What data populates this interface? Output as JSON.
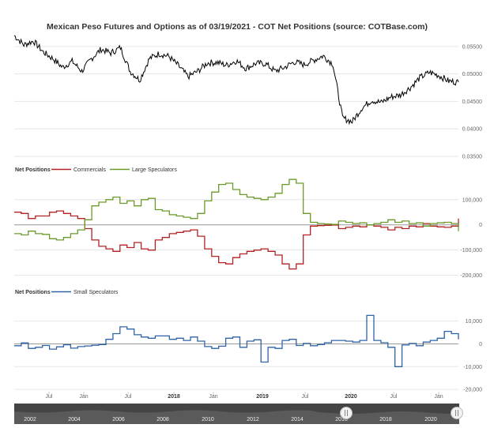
{
  "colors": {
    "price": "#000000",
    "commercials": "#b22222",
    "large_speculators": "#6b9a2b",
    "small_speculators": "#2e63a8",
    "grid": "#e6e6e6",
    "zero_line": "#999999",
    "navigator_bg": "#444444"
  },
  "chart_data": [
    {
      "type": "line",
      "title": "Mexican Peso Futures and Options as of 03/19/2021 - COT Net Positions (source: COTBase.com)",
      "ylim": [
        0.035,
        0.058
      ],
      "yticks": [
        "0.05500",
        "0.05000",
        "0.04500",
        "0.04000",
        "0.03500"
      ],
      "grid": true,
      "series": [
        {
          "x": [
            "2017-05",
            "2017-06",
            "2017-07",
            "2017-08",
            "2017-09",
            "2017-10",
            "2017-11",
            "2017-12",
            "2018-01",
            "2018-02",
            "2018-03",
            "2018-04",
            "2018-05",
            "2018-06",
            "2018-07",
            "2018-08",
            "2018-09",
            "2018-10",
            "2018-11",
            "2018-12",
            "2019-01",
            "2019-02",
            "2019-03",
            "2019-04",
            "2019-05",
            "2019-06",
            "2019-07",
            "2019-08",
            "2019-09",
            "2019-10",
            "2019-11",
            "2019-12",
            "2020-01",
            "2020-02",
            "2020-03",
            "2020-04",
            "2020-05",
            "2020-06",
            "2020-07",
            "2020-08",
            "2020-09",
            "2020-10",
            "2020-11",
            "2020-12",
            "2021-01",
            "2021-02",
            "2021-03"
          ],
          "values": [
            0.057,
            0.0553,
            0.056,
            0.054,
            0.0528,
            0.0512,
            0.0523,
            0.0505,
            0.0528,
            0.0545,
            0.0538,
            0.0548,
            0.0505,
            0.0489,
            0.0528,
            0.0537,
            0.0532,
            0.0515,
            0.0495,
            0.0505,
            0.052,
            0.0521,
            0.0516,
            0.0524,
            0.051,
            0.0519,
            0.0519,
            0.0505,
            0.0512,
            0.0522,
            0.0517,
            0.0525,
            0.0533,
            0.0518,
            0.042,
            0.0413,
            0.0438,
            0.0452,
            0.0448,
            0.0458,
            0.0462,
            0.0475,
            0.0493,
            0.0503,
            0.0497,
            0.0487,
            0.0485
          ]
        }
      ]
    },
    {
      "type": "line",
      "ylim": [
        -220000,
        190000
      ],
      "yticks": [
        100000,
        0,
        -100000,
        -200000
      ],
      "ytick_labels": [
        "100,000",
        "0",
        "-100,000",
        "-200,000"
      ],
      "legend": {
        "title": "Net Positions",
        "position": "top-left"
      },
      "series": [
        {
          "name": "Commercials",
          "values": [
            50000,
            45000,
            25000,
            35000,
            35000,
            50000,
            55000,
            45000,
            35000,
            25000,
            -15000,
            -60000,
            -85000,
            -95000,
            -105000,
            -80000,
            -90000,
            -70000,
            -95000,
            -100000,
            -60000,
            -50000,
            -35000,
            -30000,
            -25000,
            -20000,
            -45000,
            -95000,
            -125000,
            -150000,
            -155000,
            -130000,
            -115000,
            -105000,
            -100000,
            -95000,
            -105000,
            -120000,
            -155000,
            -175000,
            -155000,
            -40000,
            -5000,
            -3000,
            -2000,
            -1000,
            -15000,
            -10000,
            -5000,
            -8000,
            0,
            -5000,
            -10000,
            -20000,
            -10000,
            -15000,
            -5000,
            -8000,
            5000,
            -5000,
            -8000,
            -10000,
            -5000,
            25000
          ]
        },
        {
          "name": "Large Speculators",
          "values": [
            -35000,
            -40000,
            -25000,
            -35000,
            -38000,
            -55000,
            -60000,
            -50000,
            -35000,
            -20000,
            20000,
            75000,
            90000,
            100000,
            110000,
            85000,
            95000,
            75000,
            100000,
            105000,
            60000,
            55000,
            40000,
            35000,
            30000,
            25000,
            45000,
            95000,
            130000,
            160000,
            165000,
            140000,
            120000,
            110000,
            105000,
            100000,
            110000,
            125000,
            160000,
            180000,
            165000,
            45000,
            10000,
            5000,
            3000,
            2000,
            15000,
            10000,
            5000,
            8000,
            0,
            5000,
            10000,
            20000,
            10000,
            15000,
            5000,
            8000,
            -5000,
            5000,
            8000,
            10000,
            5000,
            -25000
          ]
        }
      ]
    },
    {
      "type": "line",
      "ylim": [
        -21000,
        13000
      ],
      "yticks": [
        10000,
        0,
        -10000,
        -20000
      ],
      "ytick_labels": [
        "10,000",
        "0",
        "-10,000",
        "-20,000"
      ],
      "legend": {
        "title": "Net Positions",
        "position": "top-left"
      },
      "series": [
        {
          "name": "Small Speculators",
          "values": [
            -800,
            400,
            -2000,
            -1500,
            -700,
            -2300,
            -1300,
            -400,
            -1900,
            -1200,
            -900,
            -600,
            -300,
            2000,
            4500,
            7500,
            6500,
            4000,
            3000,
            2500,
            3500,
            3500,
            2000,
            2500,
            1500,
            3000,
            1200,
            -1200,
            -2000,
            -1000,
            2500,
            3000,
            -1500,
            1200,
            1800,
            -8000,
            -1500,
            -2000,
            1500,
            2000,
            -700,
            200,
            -800,
            -300,
            500,
            1500,
            1500,
            1200,
            800,
            1500,
            12500,
            1500,
            500,
            -1500,
            -10000,
            -500,
            200,
            -800,
            800,
            1500,
            2500,
            5500,
            4500,
            2000
          ]
        }
      ]
    }
  ],
  "time_axis": {
    "labels": [
      "Jul",
      "Jan",
      "Jul",
      "2018",
      "Jan",
      "2019",
      "Jul",
      "2020",
      "Jul",
      "Jan"
    ],
    "bold": [
      "2018",
      "2019",
      "2020"
    ]
  },
  "navigator": {
    "years": [
      "2002",
      "2004",
      "2006",
      "2008",
      "2010",
      "2012",
      "2014",
      "2016",
      "2018",
      "2020"
    ]
  }
}
